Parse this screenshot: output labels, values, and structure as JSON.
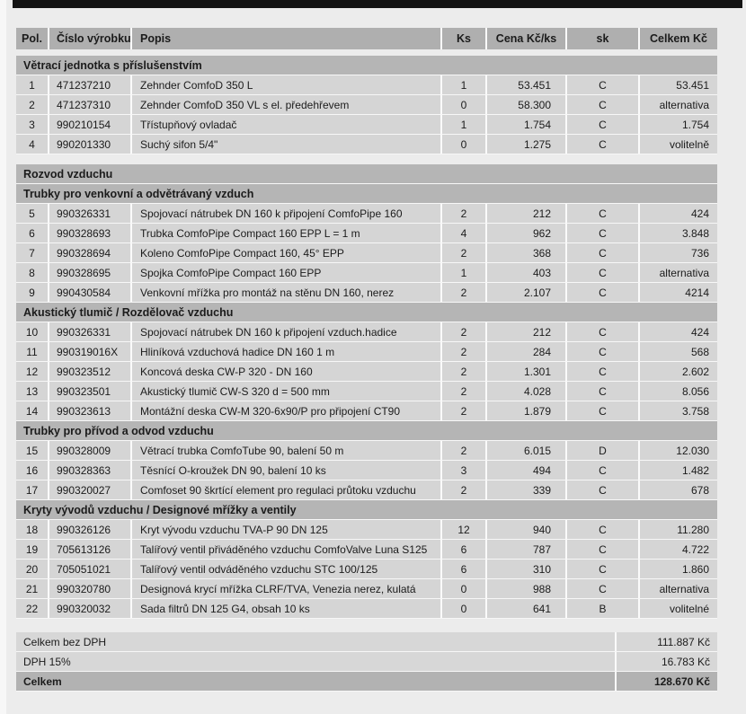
{
  "document_type_note": "price quotation table (Czech)",
  "colors": {
    "page_background": "#ececec",
    "top_bar": "#141414",
    "header_row_bg": "#afafaf",
    "section_row_bg": "#b5b5b5",
    "data_row_bg": "#d5d5d5",
    "total_row_bg": "#b2b2b2",
    "divider": "#fafafa",
    "text": "#1b1b1b"
  },
  "columns": [
    "Pol.",
    "Číslo výrobku",
    "Popis",
    "Ks",
    "Cena Kč/ks",
    "sk",
    "Celkem Kč"
  ],
  "rows": [
    {
      "kind": "section",
      "label": "Větrací jednotka s příslušenstvím"
    },
    {
      "kind": "item",
      "pol": "1",
      "code": "471237210",
      "desc": "Zehnder ComfoD 350 L",
      "qty": "1",
      "price": "53.451",
      "sk": "C",
      "total": "53.451"
    },
    {
      "kind": "item",
      "pol": "2",
      "code": "471237310",
      "desc": "Zehnder ComfoD 350 VL s el. předehřevem",
      "qty": "0",
      "price": "58.300",
      "sk": "C",
      "total": "alternativa"
    },
    {
      "kind": "item",
      "pol": "3",
      "code": "990210154",
      "desc": "Třístupňový ovladač",
      "qty": "1",
      "price": "1.754",
      "sk": "C",
      "total": "1.754"
    },
    {
      "kind": "item",
      "pol": "4",
      "code": "990201330",
      "desc": "Suchý sifon 5/4\"",
      "qty": "0",
      "price": "1.275",
      "sk": "C",
      "total": "volitelně"
    },
    {
      "kind": "section",
      "label": "Rozvod vzduchu",
      "gap": true
    },
    {
      "kind": "section",
      "label": "Trubky pro venkovní a odvětrávaný vzduch"
    },
    {
      "kind": "item",
      "pol": "5",
      "code": "990326331",
      "desc": "Spojovací nátrubek DN 160 k připojení ComfoPipe 160",
      "qty": "2",
      "price": "212",
      "sk": "C",
      "total": "424"
    },
    {
      "kind": "item",
      "pol": "6",
      "code": "990328693",
      "desc": "Trubka ComfoPipe Compact 160 EPP L = 1 m",
      "qty": "4",
      "price": "962",
      "sk": "C",
      "total": "3.848"
    },
    {
      "kind": "item",
      "pol": "7",
      "code": "990328694",
      "desc": "Koleno ComfoPipe Compact 160, 45° EPP",
      "qty": "2",
      "price": "368",
      "sk": "C",
      "total": "736"
    },
    {
      "kind": "item",
      "pol": "8",
      "code": "990328695",
      "desc": "Spojka ComfoPipe Compact 160 EPP",
      "qty": "1",
      "price": "403",
      "sk": "C",
      "total": "alternativa"
    },
    {
      "kind": "item",
      "pol": "9",
      "code": "990430584",
      "desc": "Venkovní mřížka pro montáž na stěnu DN 160, nerez",
      "qty": "2",
      "price": "2.107",
      "sk": "C",
      "total": "4214"
    },
    {
      "kind": "section",
      "label": "Akustický tlumič / Rozdělovač vzduchu"
    },
    {
      "kind": "item",
      "pol": "10",
      "code": "990326331",
      "desc": "Spojovací nátrubek DN 160 k připojení vzduch.hadice",
      "qty": "2",
      "price": "212",
      "sk": "C",
      "total": "424"
    },
    {
      "kind": "item",
      "pol": "11",
      "code": "990319016X",
      "desc": "Hliníková vzduchová hadice DN 160 1 m",
      "qty": "2",
      "price": "284",
      "sk": "C",
      "total": "568"
    },
    {
      "kind": "item",
      "pol": "12",
      "code": "990323512",
      "desc": "Koncová deska CW-P 320 - DN 160",
      "qty": "2",
      "price": "1.301",
      "sk": "C",
      "total": "2.602"
    },
    {
      "kind": "item",
      "pol": "13",
      "code": "990323501",
      "desc": "Akustický tlumič CW-S 320 d = 500 mm",
      "qty": "2",
      "price": "4.028",
      "sk": "C",
      "total": "8.056"
    },
    {
      "kind": "item",
      "pol": "14",
      "code": "990323613",
      "desc": "Montážní deska CW-M 320-6x90/P pro připojení CT90",
      "qty": "2",
      "price": "1.879",
      "sk": "C",
      "total": "3.758"
    },
    {
      "kind": "section",
      "label": "Trubky pro přívod a odvod vzduchu"
    },
    {
      "kind": "item",
      "pol": "15",
      "code": "990328009",
      "desc": "Větrací trubka ComfoTube 90, balení 50 m",
      "qty": "2",
      "price": "6.015",
      "sk": "D",
      "total": "12.030"
    },
    {
      "kind": "item",
      "pol": "16",
      "code": "990328363",
      "desc": "Těsnící O-kroužek DN 90, balení 10 ks",
      "qty": "3",
      "price": "494",
      "sk": "C",
      "total": "1.482"
    },
    {
      "kind": "item",
      "pol": "17",
      "code": "990320027",
      "desc": "Comfoset 90 škrtící element pro regulaci průtoku vzduchu",
      "qty": "2",
      "price": "339",
      "sk": "C",
      "total": "678"
    },
    {
      "kind": "section",
      "label": "Kryty vývodů vzduchu / Designové mřížky a ventily"
    },
    {
      "kind": "item",
      "pol": "18",
      "code": "990326126",
      "desc": "Kryt vývodu vzduchu TVA-P 90 DN 125",
      "qty": "12",
      "price": "940",
      "sk": "C",
      "total": "11.280"
    },
    {
      "kind": "item",
      "pol": "19",
      "code": "705613126",
      "desc": "Talířový ventil přiváděného vzduchu ComfoValve Luna S125",
      "qty": "6",
      "price": "787",
      "sk": "C",
      "total": "4.722"
    },
    {
      "kind": "item",
      "pol": "20",
      "code": "705051021",
      "desc": "Talířový ventil odváděného vzduchu STC 100/125",
      "qty": "6",
      "price": "310",
      "sk": "C",
      "total": "1.860"
    },
    {
      "kind": "item",
      "pol": "21",
      "code": "990320780",
      "desc": "Designová krycí mřížka CLRF/TVA, Venezia nerez, kulatá",
      "qty": "0",
      "price": "988",
      "sk": "C",
      "total": "alternativa"
    },
    {
      "kind": "item",
      "pol": "22",
      "code": "990320032",
      "desc": "Sada filtrů DN 125 G4, obsah 10 ks",
      "qty": "0",
      "price": "641",
      "sk": "B",
      "total": "volitelné"
    }
  ],
  "summary": {
    "rows": [
      {
        "label": "Celkem bez DPH",
        "value": "111.887 Kč",
        "emphasis": false
      },
      {
        "label": "DPH 15%",
        "value": "16.783 Kč",
        "emphasis": false
      },
      {
        "label": "Celkem",
        "value": "128.670 Kč",
        "emphasis": true
      }
    ]
  }
}
